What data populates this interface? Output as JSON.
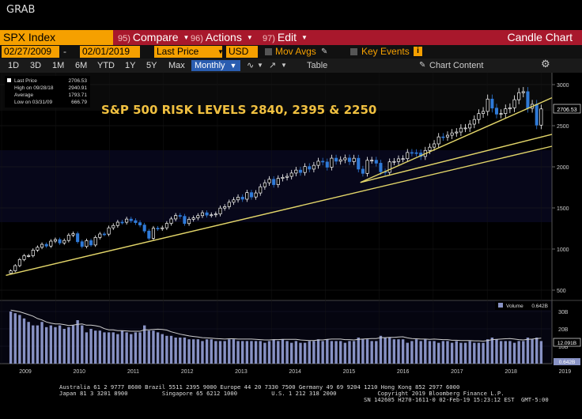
{
  "window": {
    "title": "GRAB"
  },
  "command_bar": {
    "ticker": "SPX Index",
    "compare": {
      "num": "95)",
      "label": "Compare"
    },
    "actions": {
      "num": "96)",
      "label": "Actions"
    },
    "edit": {
      "num": "97)",
      "label": "Edit"
    },
    "chart_type": "Candle Chart"
  },
  "settings_bar": {
    "start_date": "02/27/2009",
    "end_date": "02/01/2019",
    "date_sep": "-",
    "price_field": "Last Price",
    "currency": "USD",
    "mov_avgs": "Mov Avgs",
    "key_events": "Key Events",
    "info_icon": "i"
  },
  "range_bar": {
    "ranges": [
      "1D",
      "3D",
      "1M",
      "6M",
      "YTD",
      "1Y",
      "5Y",
      "Max"
    ],
    "periodicity": "Monthly",
    "table": "Table",
    "chart_content": "Chart Content"
  },
  "legend": {
    "items": [
      {
        "label": "Last Price",
        "value": "2706.53"
      },
      {
        "label": "High on 09/28/18",
        "value": "2940.91"
      },
      {
        "label": "Average",
        "value": "1793.71"
      },
      {
        "label": "Low on 03/31/09",
        "value": "666.79"
      }
    ]
  },
  "annotation": "S&P 500 RISK LEVELS 2840, 2395 & 2250",
  "last_price_tag": "2706.53",
  "volume_legend": {
    "label": "Volume",
    "value": "0.642B"
  },
  "volume_tags": {
    "ma": "12.091B",
    "last": "0.642B"
  },
  "colors": {
    "up": "#ffffff",
    "down": "#2f7ad8",
    "trendline": "#e3d66a",
    "annotation": "#f0c040",
    "volume_bar": "#8892c4",
    "accent": "#f5a000",
    "command_bar": "#a8182c"
  },
  "chart_data": {
    "type": "candlestick",
    "interval": "monthly",
    "price_axis": {
      "ticks": [
        500,
        1000,
        1500,
        2000,
        2500,
        3000
      ],
      "range": [
        500,
        3050
      ]
    },
    "volume_axis": {
      "ticks_labels": [
        "30B",
        "20B",
        "10B"
      ],
      "ticks": [
        30,
        20,
        10
      ],
      "range": [
        0,
        35
      ]
    },
    "x_labels": [
      "2009",
      "2010",
      "2011",
      "2012",
      "2013",
      "2014",
      "2015",
      "2016",
      "2017",
      "2018",
      "2019"
    ],
    "x_label_dates": [
      2009.0,
      2010.0,
      2011.0,
      2012.0,
      2013.0,
      2014.0,
      2015.0,
      2016.0,
      2017.0,
      2018.0,
      2019.0
    ],
    "monthly_close": [
      735,
      798,
      872,
      919,
      919,
      987,
      1021,
      1057,
      1036,
      1096,
      1115,
      1074,
      1104,
      1169,
      1187,
      1089,
      1031,
      1102,
      1049,
      1141,
      1183,
      1181,
      1258,
      1286,
      1327,
      1326,
      1364,
      1345,
      1321,
      1292,
      1219,
      1131,
      1253,
      1247,
      1258,
      1312,
      1366,
      1408,
      1398,
      1310,
      1362,
      1379,
      1406,
      1441,
      1412,
      1416,
      1426,
      1498,
      1515,
      1569,
      1598,
      1631,
      1606,
      1686,
      1633,
      1682,
      1757,
      1806,
      1848,
      1783,
      1859,
      1872,
      1884,
      1924,
      1960,
      1931,
      2003,
      1972,
      2018,
      2068,
      2059,
      1995,
      2105,
      2068,
      2086,
      2107,
      2063,
      2104,
      1972,
      1920,
      2079,
      2080,
      2044,
      1940,
      1932,
      2060,
      2065,
      2097,
      2099,
      2174,
      2171,
      2168,
      2126,
      2199,
      2239,
      2279,
      2364,
      2363,
      2384,
      2412,
      2423,
      2470,
      2472,
      2519,
      2575,
      2648,
      2674,
      2824,
      2714,
      2641,
      2648,
      2705,
      2718,
      2816,
      2902,
      2914,
      2712,
      2760,
      2507,
      2704
    ],
    "key_points": {
      "high": {
        "date": "09/28/18",
        "value": 2940.91
      },
      "low": {
        "date": "03/31/09",
        "value": 666.79
      },
      "last": 2706.53,
      "average": 1793.71
    },
    "trendlines": [
      {
        "from": [
          2009.08,
          680
        ],
        "to": [
          2019.2,
          2250
        ]
      },
      {
        "from": [
          2015.65,
          1810
        ],
        "to": [
          2019.2,
          2395
        ]
      },
      {
        "from": [
          2015.65,
          1810
        ],
        "to": [
          2019.2,
          2840
        ]
      }
    ],
    "risk_levels": [
      2840,
      2395,
      2250
    ],
    "volume": [
      30,
      29,
      28,
      26,
      24,
      22,
      22,
      24,
      21,
      22,
      21,
      22,
      20,
      21,
      22,
      25,
      22,
      18,
      20,
      19,
      19,
      18,
      18,
      18,
      17,
      19,
      18,
      17,
      18,
      18,
      22,
      19,
      19,
      18,
      17,
      16,
      16,
      15,
      15,
      15,
      14,
      14,
      14,
      13,
      14,
      14,
      13,
      13,
      13,
      14,
      14,
      13,
      13,
      13,
      13,
      13,
      13,
      12,
      13,
      14,
      13,
      14,
      13,
      12,
      13,
      12,
      12,
      13,
      13,
      14,
      13,
      14,
      13,
      13,
      13,
      12,
      13,
      13,
      15,
      14,
      14,
      13,
      13,
      16,
      15,
      15,
      14,
      14,
      14,
      12,
      13,
      14,
      13,
      14,
      13,
      13,
      12,
      13,
      13,
      12,
      13,
      12,
      12,
      13,
      12,
      12,
      12,
      14,
      15,
      14,
      13,
      13,
      13,
      12,
      13,
      13,
      15,
      14,
      15,
      13
    ]
  },
  "footer": {
    "line1": "Australia 61 2 9777 8600 Brazil 5511 2395 9000 Europe 44 20 7330 7500 Germany 49 69 9204 1210 Hong Kong 852 2977 6000",
    "line2": "Japan 81 3 3201 8900          Singapore 65 6212 1000          U.S. 1 212 318 2000            Copyright 2019 Bloomberg Finance L.P.",
    "line3": "SN 142605 H270-1611-0 02-Feb-19 15:23:12 EST  GMT-5:00"
  }
}
